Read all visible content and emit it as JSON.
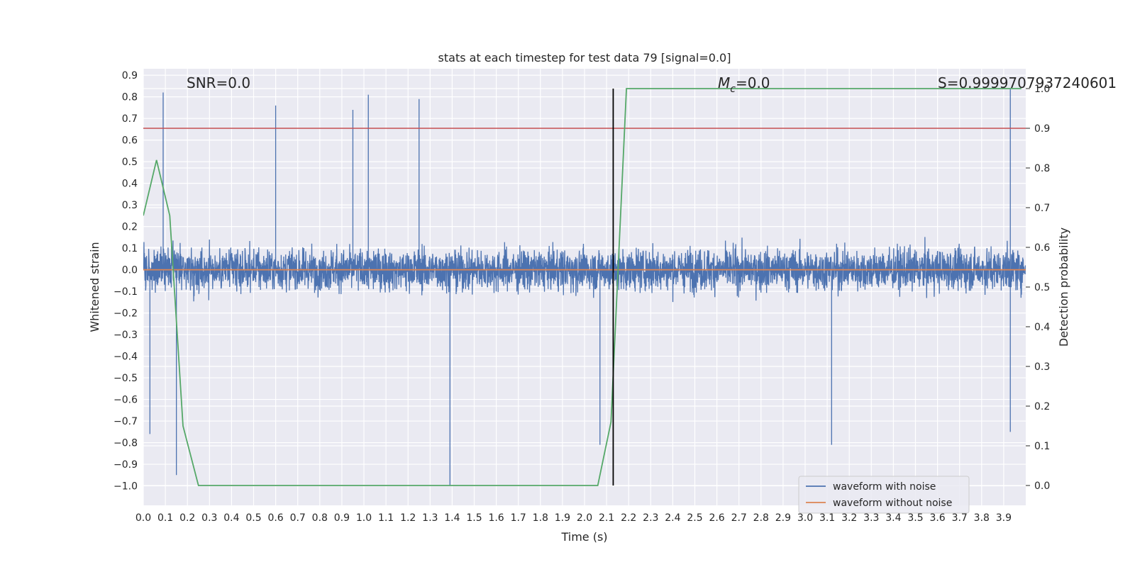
{
  "chart_data": {
    "type": "line",
    "title": "stats at each timestep for test data 79 [signal=0.0]",
    "xlabel": "Time (s)",
    "ylabel": "Whitened strain",
    "y2label": "Detection probability",
    "xlim": [
      0.0,
      4.0
    ],
    "ylim": [
      -1.09,
      0.93
    ],
    "y2lim": [
      -0.05,
      1.05
    ],
    "x_ticks": [
      "0.0",
      "0.1",
      "0.2",
      "0.3",
      "0.4",
      "0.5",
      "0.6",
      "0.7",
      "0.8",
      "0.9",
      "1.0",
      "1.1",
      "1.2",
      "1.3",
      "1.4",
      "1.5",
      "1.6",
      "1.7",
      "1.8",
      "1.9",
      "2.0",
      "2.1",
      "2.2",
      "2.3",
      "2.4",
      "2.5",
      "2.6",
      "2.7",
      "2.8",
      "2.9",
      "3.0",
      "3.1",
      "3.2",
      "3.3",
      "3.4",
      "3.5",
      "3.6",
      "3.7",
      "3.8",
      "3.9"
    ],
    "y_ticks": [
      "0.9",
      "0.8",
      "0.7",
      "0.6",
      "0.5",
      "0.4",
      "0.3",
      "0.2",
      "0.1",
      "0.0",
      "−0.1",
      "−0.2",
      "−0.3",
      "−0.4",
      "−0.5",
      "−0.6",
      "−0.7",
      "−0.8",
      "−0.9",
      "−1.0"
    ],
    "y2_ticks": [
      "0.0",
      "0.1",
      "0.2",
      "0.3",
      "0.4",
      "0.5",
      "0.6",
      "0.7",
      "0.8",
      "0.9",
      "1.0"
    ],
    "grid": true,
    "legend": "lower-right",
    "annotations": {
      "snr": "SNR=0.0",
      "mc_symbol": "M",
      "mc_sub": "c",
      "mc_value": "=0.0",
      "s": "S=0.9999707937240601"
    },
    "threshold_y2": 0.9,
    "vline_x": 2.13,
    "series": [
      {
        "name": "waveform with noise",
        "axis": "left",
        "color": "#4c72b0",
        "sample_rate": 2048,
        "envelope_spikes": [
          {
            "x": 0.09,
            "y": 0.82
          },
          {
            "x": 0.6,
            "y": 0.76
          },
          {
            "x": 0.95,
            "y": 0.74
          },
          {
            "x": 1.02,
            "y": 0.81
          },
          {
            "x": 1.25,
            "y": 0.79
          },
          {
            "x": 3.93,
            "y": 0.84
          },
          {
            "x": 0.15,
            "y": -0.95
          },
          {
            "x": 1.39,
            "y": -1.0
          },
          {
            "x": 3.12,
            "y": -0.81
          },
          {
            "x": 3.93,
            "y": -0.75
          },
          {
            "x": 2.07,
            "y": -0.81
          },
          {
            "x": 0.03,
            "y": -0.76
          }
        ]
      },
      {
        "name": "waveform without noise",
        "axis": "left",
        "color": "#dd8452",
        "x": [
          0.0,
          4.0
        ],
        "y": [
          0.0,
          0.0
        ]
      },
      {
        "name": "",
        "axis": "right",
        "color": "#55a868",
        "x": [
          0.0,
          0.06,
          0.12,
          0.18,
          0.25,
          0.3,
          1.0,
          1.5,
          2.06,
          2.12,
          2.19,
          3.0,
          3.98
        ],
        "y": [
          0.68,
          0.82,
          0.68,
          0.15,
          0.0,
          0.0,
          0.0,
          0.0,
          0.0,
          0.16,
          1.0,
          1.0,
          1.0
        ]
      }
    ]
  }
}
